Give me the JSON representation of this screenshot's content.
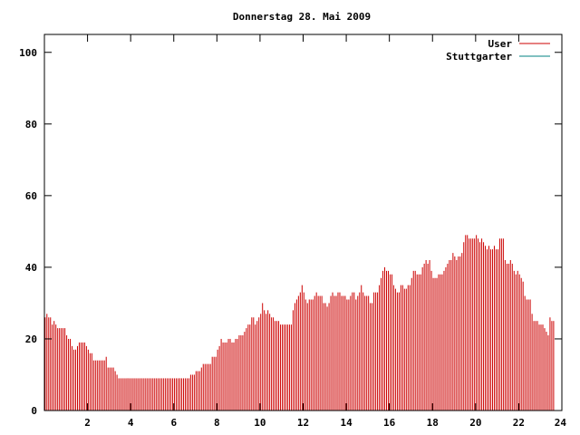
{
  "chart_data": {
    "type": "bar",
    "title": "Donnerstag 28. Mai 2009",
    "xlabel": "",
    "ylabel": "",
    "xlim": [
      0,
      24
    ],
    "ylim": [
      0,
      105
    ],
    "x_ticks": [
      2,
      4,
      6,
      8,
      10,
      12,
      14,
      16,
      18,
      20,
      22,
      24
    ],
    "y_ticks": [
      0,
      20,
      40,
      60,
      80,
      100
    ],
    "legend_position": "top-right",
    "grid": false,
    "interval_minutes": 5,
    "series": [
      {
        "name": "User",
        "color": "#cc0000",
        "values": [
          26,
          27,
          26,
          26,
          24,
          25,
          24,
          23,
          23,
          23,
          23,
          23,
          21,
          20,
          20,
          18,
          17,
          17,
          18,
          19,
          19,
          19,
          19,
          18,
          17,
          16,
          16,
          14,
          14,
          14,
          14,
          14,
          14,
          14,
          15,
          12,
          12,
          12,
          12,
          11,
          10,
          9,
          9,
          9,
          9,
          9,
          9,
          9,
          9,
          9,
          9,
          9,
          9,
          9,
          9,
          9,
          9,
          9,
          9,
          9,
          9,
          9,
          9,
          9,
          9,
          9,
          9,
          9,
          9,
          9,
          9,
          9,
          9,
          9,
          9,
          9,
          9,
          9,
          9,
          9,
          9,
          10,
          10,
          10,
          11,
          11,
          11,
          12,
          13,
          13,
          13,
          13,
          13,
          15,
          15,
          15,
          17,
          18,
          20,
          19,
          19,
          19,
          20,
          20,
          19,
          19,
          20,
          20,
          21,
          21,
          21,
          22,
          23,
          24,
          24,
          26,
          26,
          24,
          25,
          26,
          27,
          30,
          28,
          27,
          28,
          27,
          26,
          26,
          25,
          25,
          25,
          24,
          24,
          24,
          24,
          24,
          24,
          24,
          28,
          30,
          31,
          32,
          33,
          35,
          33,
          31,
          30,
          31,
          31,
          31,
          32,
          33,
          32,
          32,
          32,
          30,
          30,
          29,
          30,
          32,
          33,
          32,
          32,
          33,
          33,
          32,
          32,
          32,
          31,
          31,
          32,
          33,
          33,
          31,
          32,
          33,
          35,
          33,
          32,
          32,
          32,
          30,
          30,
          33,
          33,
          33,
          35,
          37,
          39,
          40,
          39,
          39,
          38,
          38,
          35,
          34,
          33,
          33,
          35,
          35,
          34,
          34,
          35,
          35,
          37,
          39,
          39,
          38,
          38,
          38,
          40,
          41,
          42,
          41,
          42,
          39,
          37,
          37,
          37,
          38,
          38,
          38,
          39,
          40,
          41,
          42,
          42,
          44,
          43,
          42,
          43,
          43,
          44,
          47,
          49,
          49,
          48,
          48,
          48,
          48,
          49,
          48,
          47,
          48,
          47,
          46,
          45,
          46,
          45,
          45,
          46,
          45,
          45,
          48,
          48,
          48,
          42,
          41,
          41,
          42,
          41,
          39,
          38,
          39,
          38,
          37,
          36,
          32,
          31,
          31,
          31,
          27,
          25,
          25,
          25,
          24,
          24,
          24,
          23,
          22,
          21,
          26,
          25,
          25
        ]
      },
      {
        "name": "Stuttgarter",
        "color": "#008080",
        "values": []
      }
    ]
  }
}
